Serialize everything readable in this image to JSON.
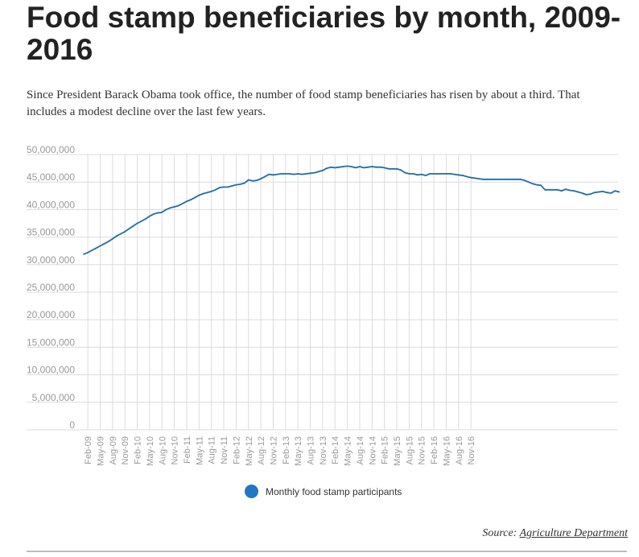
{
  "title": "Food stamp beneficiaries by month, 2009-2016",
  "subtitle": "Since President Barack Obama took office, the number of food stamp beneficiaries has risen by about a third. That includes a modest decline over the last few years.",
  "source": {
    "prefix": "Source: ",
    "link_text": "Agriculture Department"
  },
  "colors": {
    "line": "#1f6ea8",
    "legend_dot": "#1f78c1",
    "grid": "#dcdcdc",
    "axis_text": "#999999"
  },
  "chart_data": {
    "type": "line",
    "title": "Food stamp beneficiaries by month, 2009-2016",
    "xlabel": "",
    "ylabel": "",
    "ylim": [
      0,
      50000000
    ],
    "yticks": [
      0,
      5000000,
      10000000,
      15000000,
      20000000,
      25000000,
      30000000,
      35000000,
      40000000,
      45000000,
      50000000
    ],
    "ytick_labels": [
      "0",
      "5,000,000",
      "10,000,000",
      "15,000,000",
      "20,000,000",
      "25,000,000",
      "30,000,000",
      "35,000,000",
      "40,000,000",
      "45,000,000",
      "50,000,000"
    ],
    "xtick_labels": [
      "Feb-09",
      "May-09",
      "Aug-09",
      "Nov-09",
      "Feb-10",
      "May-10",
      "Aug-10",
      "Nov-10",
      "Feb-11",
      "May-11",
      "Aug-11",
      "Nov-11",
      "Feb-12",
      "May-12",
      "Aug-12",
      "Nov-12",
      "Feb-13",
      "May-13",
      "Aug-13",
      "Nov-13",
      "Feb-14",
      "May-14",
      "Aug-14",
      "Nov-14",
      "Feb-15",
      "May-15",
      "Aug-15",
      "Nov-15",
      "Feb-16",
      "May-16",
      "Aug-16",
      "Nov-16"
    ],
    "grid": true,
    "legend_position": "bottom",
    "series": [
      {
        "name": "Monthly food stamp participants",
        "x_start": "Jan-09",
        "x_end": "Nov-16",
        "values": [
          31900000,
          32200000,
          32600000,
          33000000,
          33400000,
          33800000,
          34200000,
          34700000,
          35200000,
          35600000,
          36000000,
          36500000,
          37000000,
          37500000,
          37900000,
          38300000,
          38800000,
          39200000,
          39400000,
          39500000,
          40000000,
          40300000,
          40500000,
          40700000,
          41100000,
          41500000,
          41800000,
          42200000,
          42600000,
          42900000,
          43100000,
          43300000,
          43600000,
          44000000,
          44100000,
          44100000,
          44300000,
          44500000,
          44600000,
          44800000,
          45400000,
          45200000,
          45300000,
          45600000,
          46000000,
          46400000,
          46300000,
          46400000,
          46500000,
          46500000,
          46500000,
          46400000,
          46500000,
          46400000,
          46500000,
          46600000,
          46700000,
          46900000,
          47100000,
          47500000,
          47700000,
          47600000,
          47700000,
          47800000,
          47900000,
          47800000,
          47600000,
          47800000,
          47600000,
          47700000,
          47800000,
          47700000,
          47700000,
          47600000,
          47400000,
          47400000,
          47400000,
          47200000,
          46700000,
          46500000,
          46500000,
          46300000,
          46400000,
          46200000,
          46500000,
          46500000,
          46500000,
          46500000,
          46500000,
          46500000,
          46400000,
          46300000,
          46200000,
          46000000,
          45800000,
          45700000,
          45600000,
          45500000,
          45500000,
          45500000,
          45500000,
          45500000,
          45500000,
          45500000,
          45500000,
          45500000,
          45500000,
          45300000,
          45000000,
          44700000,
          44500000,
          44400000,
          43600000,
          43600000,
          43600000,
          43600000,
          43400000,
          43700000,
          43500000,
          43400000,
          43200000,
          43000000,
          42700000,
          42800000,
          43100000,
          43200000,
          43300000,
          43100000,
          43000000,
          43400000,
          43200000
        ]
      }
    ]
  }
}
